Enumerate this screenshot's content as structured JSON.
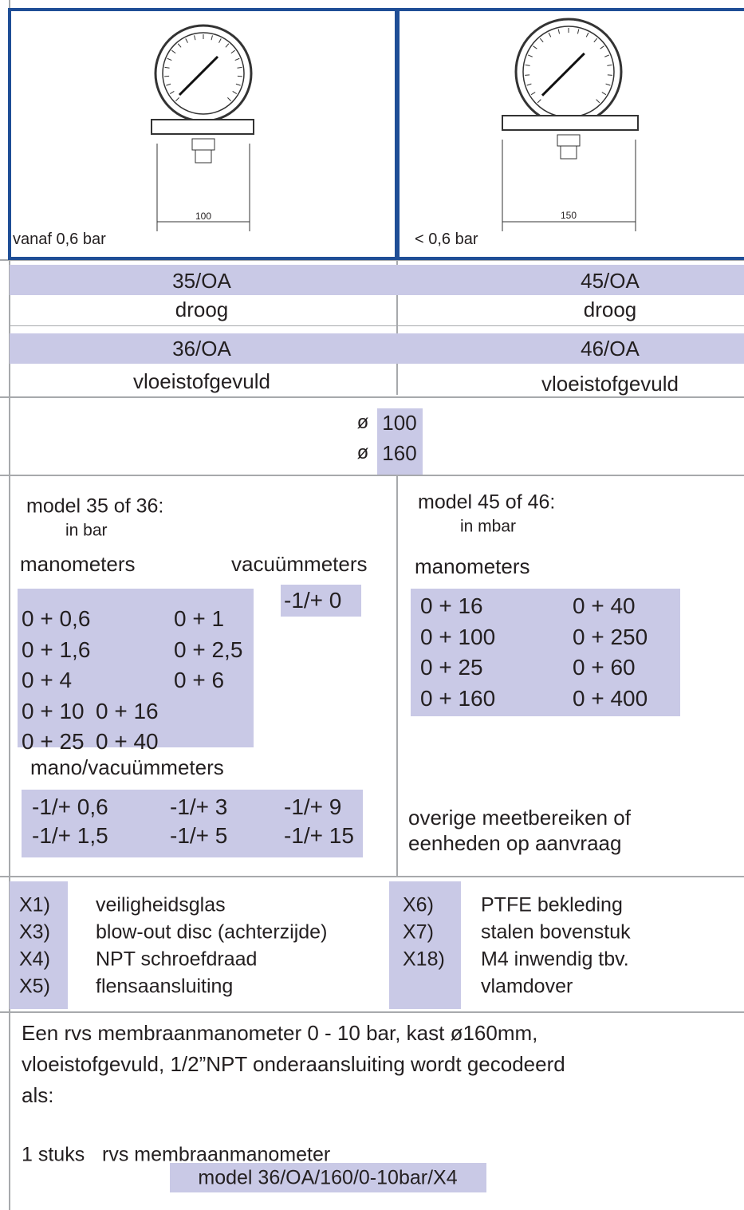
{
  "images": [
    {
      "caption": "vanaf 0,6 bar",
      "dimension": "100"
    },
    {
      "caption": "< 0,6 bar",
      "dimension": "150"
    }
  ],
  "models": [
    [
      "35/OA",
      "45/OA"
    ],
    [
      "droog",
      "droog"
    ],
    [
      "36/OA",
      "46/OA"
    ],
    [
      "vloeistofgevuld",
      "vloeistofgevuld"
    ]
  ],
  "diameters": [
    {
      "symbol": "ø",
      "size": "100"
    },
    {
      "symbol": "ø",
      "size": "160"
    }
  ],
  "ranges_left": {
    "title": "model 35 of 36:",
    "unit": "in bar",
    "manometers_label": "manometers",
    "vacuum_label": "vacuümmeters",
    "manometers": [
      [
        "0 + 0,6",
        "0 + 1"
      ],
      [
        "0 + 1,6",
        "0 + 2,5"
      ],
      [
        "0 + 4",
        "0 + 6"
      ],
      [
        "0 + 10",
        "0 + 16"
      ],
      [
        "0 + 25",
        "0 + 40"
      ]
    ],
    "vacuum": [
      "-1/+ 0"
    ],
    "mano_vacuum_label": "mano/vacuümmeters",
    "mano_vacuum": [
      [
        "-1/+ 0,6",
        "-1/+ 3",
        "-1/+ 9"
      ],
      [
        "-1/+ 1,5",
        "-1/+ 5",
        "-1/+ 15"
      ]
    ]
  },
  "ranges_right": {
    "title": "model 45 of 46:",
    "unit": "in mbar",
    "manometers_label": "manometers",
    "manometers": [
      [
        "0 + 16",
        "0 + 40"
      ],
      [
        "0 + 100",
        "0 + 250"
      ],
      [
        "0 + 25",
        "0 + 60"
      ],
      [
        "0 + 160",
        "0 + 400"
      ]
    ],
    "note": [
      "overige meetbereiken of",
      "eenheden op aanvraag"
    ]
  },
  "options_left": [
    {
      "code": "X1)",
      "text": "veiligheidsglas"
    },
    {
      "code": "X3)",
      "text": "blow-out disc (achterzijde)"
    },
    {
      "code": "X4)",
      "text": "NPT schroefdraad"
    },
    {
      "code": "X5)",
      "text": "flensaansluiting"
    }
  ],
  "options_right": [
    {
      "code": "X6)",
      "text": "PTFE bekleding"
    },
    {
      "code": "X7)",
      "text": "stalen bovenstuk"
    },
    {
      "code": "X18)",
      "text": "M4 inwendig tbv.",
      "text_cont": "vlamdover"
    }
  ],
  "example": {
    "lines": [
      "Een rvs membraanmanometer 0 - 10 bar, kast ø160mm,",
      "vloeistofgevuld, 1/2”NPT onderaansluiting wordt gecodeerd",
      "als:"
    ],
    "quantity": "1 stuks",
    "item": "rvs membraanmanometer",
    "code": "model 36/OA/160/0-10bar/X4"
  }
}
